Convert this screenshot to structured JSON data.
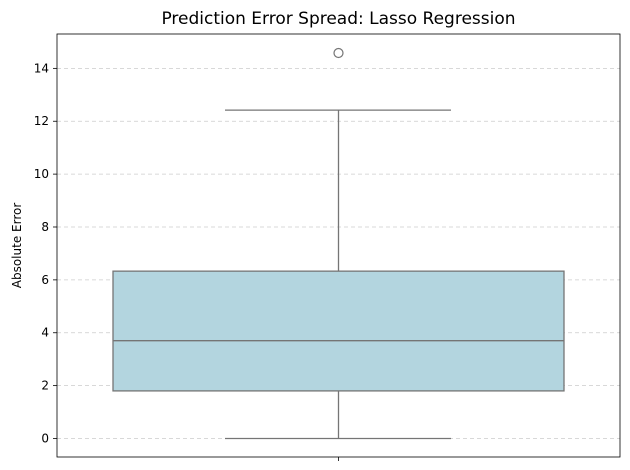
{
  "chart_data": {
    "type": "box",
    "title": "Prediction Error Spread: Lasso Regression",
    "xlabel": "",
    "ylabel": "Absolute Error",
    "ylim": [
      -0.7,
      15.3
    ],
    "yticks": [
      0,
      2,
      4,
      6,
      8,
      10,
      12,
      14
    ],
    "grid": "y-dashed",
    "box": {
      "whisker_low": 0.0,
      "q1": 1.8,
      "median": 3.7,
      "q3": 6.33,
      "whisker_high": 12.42,
      "outliers": [
        14.58
      ]
    },
    "colors": {
      "box_fill": "#b3d5df",
      "line": "#757575",
      "grid": "#cccccc",
      "axes": "#000000"
    }
  }
}
